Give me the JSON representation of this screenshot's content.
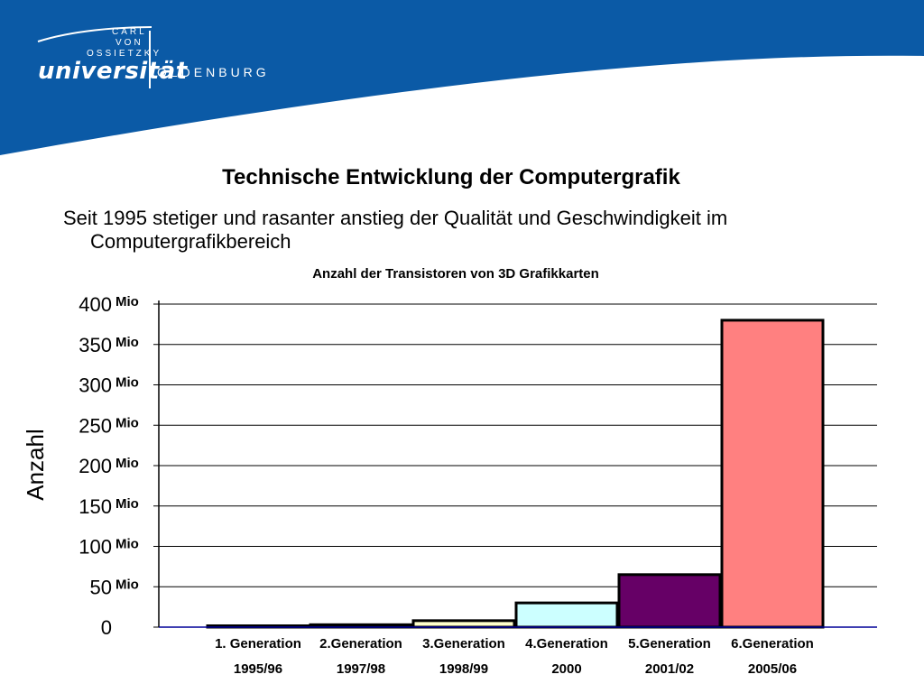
{
  "logo": {
    "line1": "CARL",
    "line2": "VON",
    "line3": "OSSIETZKY",
    "main": "universität",
    "city": "OLDENBURG"
  },
  "slide": {
    "title": "Technische Entwicklung der Computergrafik",
    "text": "Seit 1995 stetiger und rasanter anstieg der Qualität und Geschwindigkeit im Computergrafikbereich"
  },
  "colors": {
    "banner": "#0b5aa6",
    "grid": "#000000"
  },
  "chart_data": {
    "type": "bar",
    "title": "Anzahl der Transistoren von 3D Grafikkarten",
    "ylabel": "Anzahl",
    "ylim": [
      0,
      400
    ],
    "yticks": [
      {
        "value": 0,
        "label": "0",
        "unit": ""
      },
      {
        "value": 50,
        "label": "50",
        "unit": "Mio"
      },
      {
        "value": 100,
        "label": "100",
        "unit": "Mio"
      },
      {
        "value": 150,
        "label": "150",
        "unit": "Mio"
      },
      {
        "value": 200,
        "label": "200",
        "unit": "Mio"
      },
      {
        "value": 250,
        "label": "250",
        "unit": "Mio"
      },
      {
        "value": 300,
        "label": "300",
        "unit": "Mio"
      },
      {
        "value": 350,
        "label": "350",
        "unit": "Mio"
      },
      {
        "value": 400,
        "label": "400",
        "unit": "Mio"
      }
    ],
    "categories": [
      "1. Generation",
      "2.Generation",
      "3.Generation",
      "4.Generation",
      "5.Generation",
      "6.Generation"
    ],
    "years": [
      "1995/96",
      "1997/98",
      "1998/99",
      "2000",
      "2001/02",
      "2005/06"
    ],
    "values": [
      1,
      3,
      8,
      30,
      65,
      380
    ],
    "colors": [
      "#ffffff",
      "#ffffff",
      "#ffffcc",
      "#ccffff",
      "#660066",
      "#ff8080"
    ],
    "grid": true
  }
}
